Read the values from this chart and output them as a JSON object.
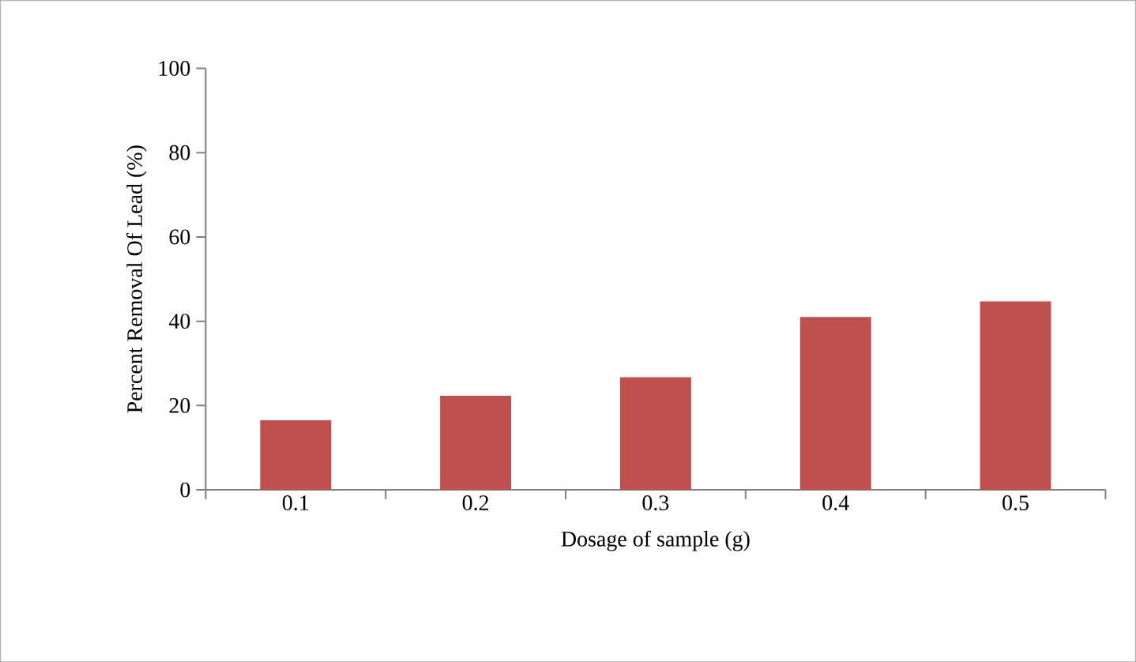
{
  "chart_data": {
    "type": "bar",
    "xlabel": "Dosage of sample (g)",
    "ylabel": "Percent Removal Of Lead (%)",
    "categories": [
      "0.1",
      "0.2",
      "0.3",
      "0.4",
      "0.5"
    ],
    "values": [
      16.5,
      22.3,
      26.7,
      41.0,
      44.7
    ],
    "color": "#c0504d",
    "ylim": [
      0,
      100
    ],
    "yticks": [
      0,
      20,
      40,
      60,
      80,
      100
    ]
  }
}
